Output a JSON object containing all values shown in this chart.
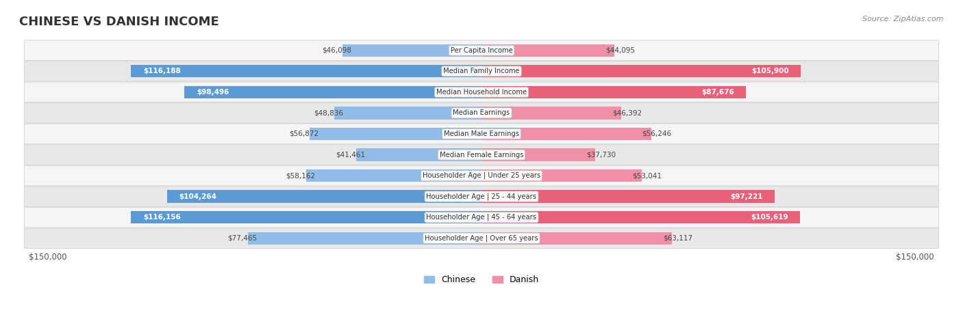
{
  "title": "CHINESE VS DANISH INCOME",
  "source": "Source: ZipAtlas.com",
  "max_value": 150000,
  "categories": [
    "Per Capita Income",
    "Median Family Income",
    "Median Household Income",
    "Median Earnings",
    "Median Male Earnings",
    "Median Female Earnings",
    "Householder Age | Under 25 years",
    "Householder Age | 25 - 44 years",
    "Householder Age | 45 - 64 years",
    "Householder Age | Over 65 years"
  ],
  "chinese_values": [
    46098,
    116188,
    98496,
    48836,
    56872,
    41461,
    58162,
    104264,
    116156,
    77465
  ],
  "danish_values": [
    44095,
    105900,
    87676,
    46392,
    56246,
    37730,
    53041,
    97221,
    105619,
    63117
  ],
  "chinese_color": "#91BCE8",
  "danish_color": "#F090A8",
  "chinese_color_strong": "#5B9BD5",
  "danish_color_strong": "#E8607A",
  "row_bg_color_light": "#F5F5F5",
  "row_bg_color_dark": "#E8E8E8",
  "title_color": "#333333",
  "value_label_threshold": 80000,
  "bar_height": 0.6,
  "legend_labels": [
    "Chinese",
    "Danish"
  ]
}
